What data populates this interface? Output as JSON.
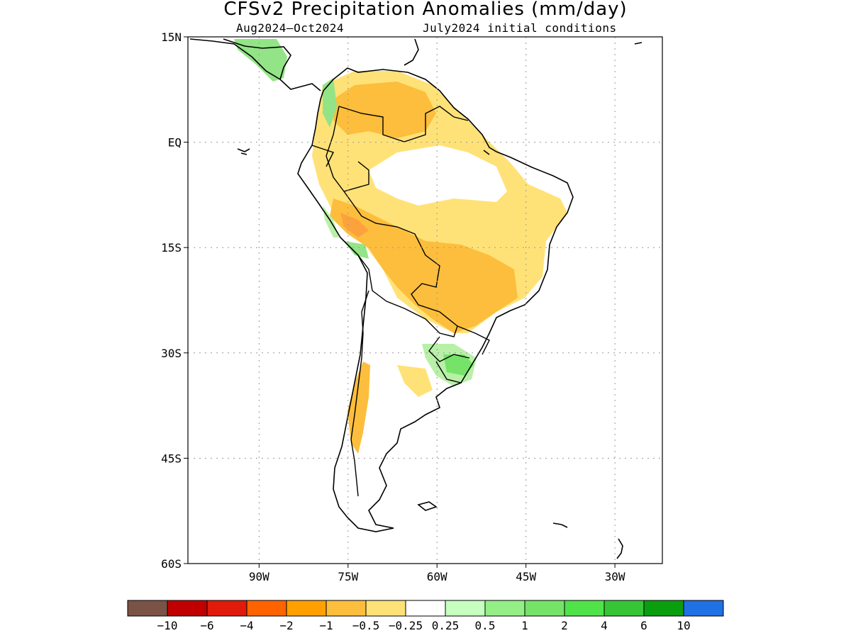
{
  "title": "CFSv2 Precipitation Anomalies (mm/day)",
  "subtitle_left": "Aug2024–Oct2024",
  "subtitle_right": "July2024 initial conditions",
  "map": {
    "region": "South America",
    "lat_range": [
      -60,
      15
    ],
    "lon_range": [
      -102,
      -22
    ],
    "lat_ticks": [
      {
        "value": 15,
        "label": "15N"
      },
      {
        "value": 0,
        "label": "EQ"
      },
      {
        "value": -15,
        "label": "15S"
      },
      {
        "value": -30,
        "label": "30S"
      },
      {
        "value": -45,
        "label": "45S"
      },
      {
        "value": -60,
        "label": "60S"
      }
    ],
    "lon_ticks": [
      {
        "value": -90,
        "label": "90W"
      },
      {
        "value": -75,
        "label": "75W"
      },
      {
        "value": -60,
        "label": "60W"
      },
      {
        "value": -45,
        "label": "45W"
      },
      {
        "value": -30,
        "label": "30W"
      }
    ],
    "grid": true,
    "anomaly_regions": [
      {
        "name": "northern south america dry",
        "level": "-0.5",
        "color": "#ffe277"
      },
      {
        "name": "central brazil bolivia dry",
        "level": "-1",
        "color": "#fcbe3c"
      },
      {
        "name": "southern brazil uruguay wet",
        "level": "0.5",
        "color": "#b8f0a8"
      },
      {
        "name": "central america wet",
        "level": "0.5",
        "color": "#93e486"
      },
      {
        "name": "southern andes dry",
        "level": "-1",
        "color": "#fcbe3c"
      }
    ]
  },
  "colorbar": {
    "colors": [
      "#7a5346",
      "#c00000",
      "#e11b0b",
      "#ff6300",
      "#ffa000",
      "#fcbe3c",
      "#ffe277",
      "#ffffff",
      "#c6ffbf",
      "#93ef86",
      "#75e368",
      "#50e349",
      "#36c535",
      "#0a9e0f",
      "#2071e3"
    ],
    "labels": [
      "−10",
      "−6",
      "−4",
      "−2",
      "−1",
      "−0.5",
      "−0.25",
      "0.25",
      "0.5",
      "1",
      "2",
      "4",
      "6",
      "10"
    ]
  }
}
